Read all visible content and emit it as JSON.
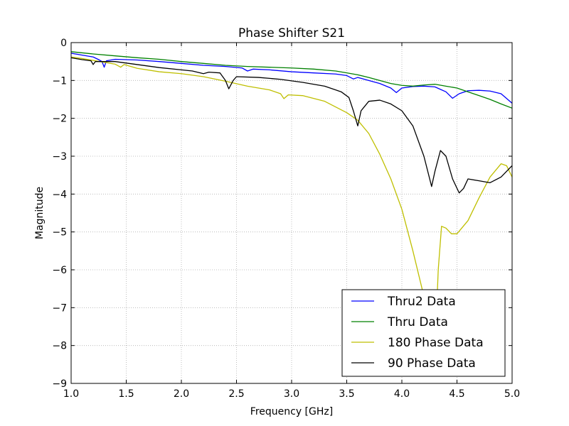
{
  "chart_data": {
    "type": "line",
    "title": "Phase Shifter S21",
    "xlabel": "Frequency [GHz]",
    "ylabel": "Magnitude",
    "xlim": [
      1.0,
      5.0
    ],
    "ylim": [
      -9,
      0
    ],
    "xticks": [
      "1.0",
      "1.5",
      "2.0",
      "2.5",
      "3.0",
      "3.5",
      "4.0",
      "4.5",
      "5.0"
    ],
    "yticks": [
      "0",
      "−1",
      "−2",
      "−3",
      "−4",
      "−5",
      "−6",
      "−7",
      "−8",
      "−9"
    ],
    "grid": true,
    "legend_position": "lower-right",
    "series": [
      {
        "name": "Thru2 Data",
        "color": "#0000ff",
        "points": [
          [
            1.0,
            -0.28
          ],
          [
            1.1,
            -0.33
          ],
          [
            1.2,
            -0.38
          ],
          [
            1.25,
            -0.45
          ],
          [
            1.28,
            -0.5
          ],
          [
            1.3,
            -0.65
          ],
          [
            1.32,
            -0.48
          ],
          [
            1.4,
            -0.44
          ],
          [
            1.6,
            -0.46
          ],
          [
            1.8,
            -0.5
          ],
          [
            2.0,
            -0.55
          ],
          [
            2.2,
            -0.6
          ],
          [
            2.4,
            -0.63
          ],
          [
            2.55,
            -0.67
          ],
          [
            2.6,
            -0.75
          ],
          [
            2.65,
            -0.7
          ],
          [
            2.8,
            -0.72
          ],
          [
            3.0,
            -0.77
          ],
          [
            3.2,
            -0.8
          ],
          [
            3.4,
            -0.83
          ],
          [
            3.5,
            -0.87
          ],
          [
            3.56,
            -0.96
          ],
          [
            3.6,
            -0.92
          ],
          [
            3.7,
            -1.0
          ],
          [
            3.8,
            -1.08
          ],
          [
            3.9,
            -1.2
          ],
          [
            3.95,
            -1.32
          ],
          [
            4.0,
            -1.2
          ],
          [
            4.1,
            -1.16
          ],
          [
            4.2,
            -1.15
          ],
          [
            4.3,
            -1.17
          ],
          [
            4.4,
            -1.3
          ],
          [
            4.46,
            -1.47
          ],
          [
            4.52,
            -1.35
          ],
          [
            4.6,
            -1.27
          ],
          [
            4.7,
            -1.26
          ],
          [
            4.8,
            -1.28
          ],
          [
            4.9,
            -1.35
          ],
          [
            5.0,
            -1.6
          ]
        ]
      },
      {
        "name": "Thru Data",
        "color": "#008000",
        "points": [
          [
            1.0,
            -0.24
          ],
          [
            1.2,
            -0.3
          ],
          [
            1.4,
            -0.35
          ],
          [
            1.6,
            -0.4
          ],
          [
            1.8,
            -0.44
          ],
          [
            2.0,
            -0.5
          ],
          [
            2.2,
            -0.55
          ],
          [
            2.4,
            -0.6
          ],
          [
            2.6,
            -0.63
          ],
          [
            2.8,
            -0.65
          ],
          [
            3.0,
            -0.67
          ],
          [
            3.2,
            -0.7
          ],
          [
            3.4,
            -0.75
          ],
          [
            3.5,
            -0.8
          ],
          [
            3.6,
            -0.85
          ],
          [
            3.7,
            -0.92
          ],
          [
            3.8,
            -1.0
          ],
          [
            3.9,
            -1.08
          ],
          [
            4.0,
            -1.13
          ],
          [
            4.1,
            -1.15
          ],
          [
            4.2,
            -1.12
          ],
          [
            4.3,
            -1.1
          ],
          [
            4.4,
            -1.15
          ],
          [
            4.5,
            -1.2
          ],
          [
            4.6,
            -1.3
          ],
          [
            4.7,
            -1.4
          ],
          [
            4.8,
            -1.5
          ],
          [
            4.9,
            -1.62
          ],
          [
            5.0,
            -1.73
          ]
        ]
      },
      {
        "name": "180 Phase Data",
        "color": "#bfbf00",
        "points": [
          [
            1.0,
            -0.38
          ],
          [
            1.1,
            -0.42
          ],
          [
            1.2,
            -0.47
          ],
          [
            1.3,
            -0.52
          ],
          [
            1.4,
            -0.57
          ],
          [
            1.45,
            -0.65
          ],
          [
            1.48,
            -0.58
          ],
          [
            1.6,
            -0.68
          ],
          [
            1.8,
            -0.77
          ],
          [
            2.0,
            -0.82
          ],
          [
            2.2,
            -0.9
          ],
          [
            2.4,
            -1.02
          ],
          [
            2.6,
            -1.15
          ],
          [
            2.8,
            -1.25
          ],
          [
            2.9,
            -1.35
          ],
          [
            2.93,
            -1.48
          ],
          [
            2.97,
            -1.38
          ],
          [
            3.1,
            -1.4
          ],
          [
            3.3,
            -1.55
          ],
          [
            3.4,
            -1.7
          ],
          [
            3.5,
            -1.85
          ],
          [
            3.6,
            -2.05
          ],
          [
            3.7,
            -2.4
          ],
          [
            3.8,
            -2.95
          ],
          [
            3.9,
            -3.6
          ],
          [
            4.0,
            -4.4
          ],
          [
            4.1,
            -5.5
          ],
          [
            4.2,
            -6.7
          ],
          [
            4.3,
            -8.2
          ],
          [
            4.33,
            -6.0
          ],
          [
            4.36,
            -4.85
          ],
          [
            4.4,
            -4.9
          ],
          [
            4.45,
            -5.05
          ],
          [
            4.5,
            -5.05
          ],
          [
            4.6,
            -4.7
          ],
          [
            4.7,
            -4.1
          ],
          [
            4.8,
            -3.55
          ],
          [
            4.9,
            -3.2
          ],
          [
            4.95,
            -3.25
          ],
          [
            5.0,
            -3.55
          ]
        ]
      },
      {
        "name": "90 Phase Data",
        "color": "#000000",
        "points": [
          [
            1.0,
            -0.4
          ],
          [
            1.1,
            -0.45
          ],
          [
            1.18,
            -0.48
          ],
          [
            1.2,
            -0.58
          ],
          [
            1.22,
            -0.5
          ],
          [
            1.4,
            -0.5
          ],
          [
            1.6,
            -0.58
          ],
          [
            1.8,
            -0.66
          ],
          [
            2.0,
            -0.72
          ],
          [
            2.1,
            -0.75
          ],
          [
            2.2,
            -0.82
          ],
          [
            2.25,
            -0.78
          ],
          [
            2.35,
            -0.8
          ],
          [
            2.4,
            -1.0
          ],
          [
            2.43,
            -1.22
          ],
          [
            2.47,
            -1.0
          ],
          [
            2.5,
            -0.9
          ],
          [
            2.7,
            -0.92
          ],
          [
            2.9,
            -0.97
          ],
          [
            3.1,
            -1.05
          ],
          [
            3.3,
            -1.15
          ],
          [
            3.45,
            -1.3
          ],
          [
            3.52,
            -1.45
          ],
          [
            3.56,
            -1.8
          ],
          [
            3.6,
            -2.2
          ],
          [
            3.63,
            -1.8
          ],
          [
            3.7,
            -1.55
          ],
          [
            3.8,
            -1.52
          ],
          [
            3.9,
            -1.62
          ],
          [
            4.0,
            -1.8
          ],
          [
            4.1,
            -2.2
          ],
          [
            4.2,
            -3.0
          ],
          [
            4.27,
            -3.8
          ],
          [
            4.3,
            -3.4
          ],
          [
            4.35,
            -2.85
          ],
          [
            4.4,
            -3.0
          ],
          [
            4.46,
            -3.6
          ],
          [
            4.52,
            -3.97
          ],
          [
            4.56,
            -3.85
          ],
          [
            4.6,
            -3.6
          ],
          [
            4.7,
            -3.65
          ],
          [
            4.8,
            -3.7
          ],
          [
            4.9,
            -3.55
          ],
          [
            5.0,
            -3.25
          ]
        ]
      }
    ]
  }
}
